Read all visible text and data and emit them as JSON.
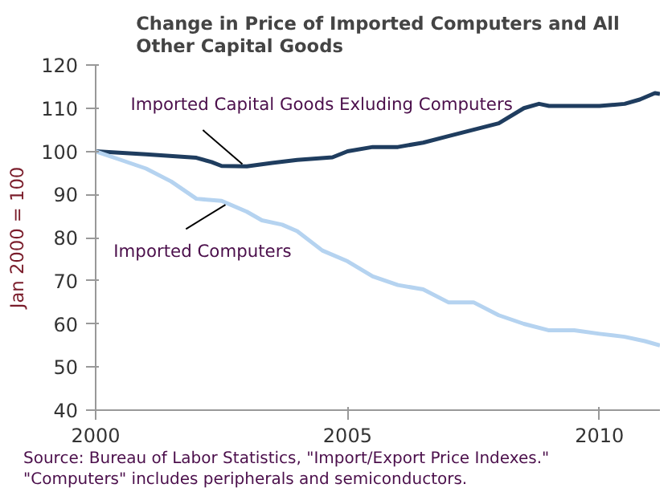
{
  "chart_data": {
    "type": "line",
    "title": "Change in Price of Imported Computers and All\nOther Capital Goods",
    "ylabel": "Jan 2000 = 100",
    "xlim": [
      2000,
      2011.2
    ],
    "xticks": [
      2000,
      2005,
      2010
    ],
    "ylim": [
      40,
      120
    ],
    "yticks": [
      40,
      50,
      60,
      70,
      80,
      90,
      100,
      110,
      120
    ],
    "grid": false,
    "legend": false,
    "series": [
      {
        "name": "Imported Capital Goods Exluding Computers",
        "color": "#1f3d5f",
        "x": [
          2000,
          2001,
          2002,
          2002.3,
          2002.5,
          2003,
          2003.5,
          2004,
          2004.7,
          2005,
          2005.5,
          2006,
          2006.5,
          2007,
          2007.5,
          2008,
          2008.5,
          2008.8,
          2009,
          2009.5,
          2010,
          2010.5,
          2010.8,
          2011.1,
          2011.2
        ],
        "values": [
          100,
          99.3,
          98.5,
          97.5,
          96.6,
          96.5,
          97.3,
          98,
          98.6,
          100,
          101,
          101,
          102,
          103.5,
          105,
          106.5,
          110,
          111,
          110.5,
          110.5,
          110.5,
          111,
          112,
          113.5,
          113.3
        ]
      },
      {
        "name": "Imported Computers",
        "color": "#b5d3f0",
        "x": [
          2000,
          2000.5,
          2001,
          2001.5,
          2002,
          2002.5,
          2003,
          2003.3,
          2003.7,
          2004,
          2004.5,
          2005,
          2005.5,
          2006,
          2006.5,
          2007,
          2007.5,
          2008,
          2008.5,
          2009,
          2009.5,
          2010,
          2010.5,
          2010.9,
          2011.2
        ],
        "values": [
          100,
          98,
          96,
          93,
          89,
          88.5,
          86,
          84,
          83,
          81.5,
          77,
          74.5,
          71,
          69,
          68,
          65,
          65,
          62,
          60,
          58.5,
          58.5,
          57.7,
          57,
          56,
          55
        ]
      }
    ],
    "annotations": [
      "Source: Bureau of Labor Statistics, \"Import/Export Price Indexes.\"",
      "\"Computers\" includes peripherals and semiconductors."
    ]
  }
}
